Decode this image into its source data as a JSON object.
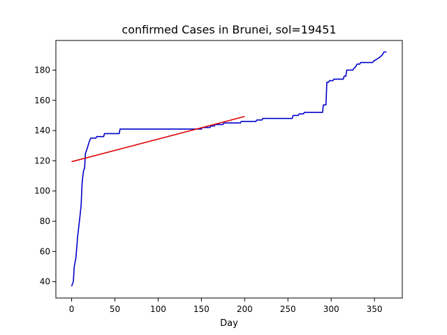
{
  "chart_data": {
    "type": "line",
    "title": "confirmed Cases in Brunei, sol=19451",
    "xlabel": "Day",
    "ylabel": "",
    "xlim": [
      -18.2,
      382.2
    ],
    "ylim": [
      29.2,
      199.6
    ],
    "xticks": [
      0,
      50,
      100,
      150,
      200,
      250,
      300,
      350
    ],
    "yticks": [
      40,
      60,
      80,
      100,
      120,
      140,
      160,
      180
    ],
    "grid": false,
    "series": [
      {
        "color": "#0000cc",
        "points": [
          [
            0,
            37
          ],
          [
            2,
            40
          ],
          [
            3,
            50
          ],
          [
            5,
            56
          ],
          [
            7,
            70
          ],
          [
            9,
            80
          ],
          [
            10,
            85
          ],
          [
            11,
            91
          ],
          [
            12,
            104
          ],
          [
            13,
            110
          ],
          [
            14,
            114
          ],
          [
            15,
            115
          ],
          [
            16,
            125
          ],
          [
            18,
            128
          ],
          [
            20,
            132
          ],
          [
            22,
            135
          ],
          [
            28,
            135
          ],
          [
            29,
            136
          ],
          [
            37,
            136
          ],
          [
            38,
            138
          ],
          [
            55,
            138
          ],
          [
            56,
            141
          ],
          [
            150,
            141
          ],
          [
            151,
            142
          ],
          [
            160,
            142
          ],
          [
            161,
            143
          ],
          [
            165,
            143
          ],
          [
            166,
            144
          ],
          [
            175,
            144
          ],
          [
            176,
            145
          ],
          [
            195,
            145
          ],
          [
            196,
            146
          ],
          [
            213,
            146
          ],
          [
            214,
            147
          ],
          [
            220,
            147
          ],
          [
            221,
            148
          ],
          [
            255,
            148
          ],
          [
            256,
            150
          ],
          [
            262,
            150
          ],
          [
            263,
            151
          ],
          [
            268,
            151
          ],
          [
            269,
            152
          ],
          [
            290,
            152
          ],
          [
            291,
            157
          ],
          [
            294,
            157
          ],
          [
            295,
            172
          ],
          [
            297,
            172
          ],
          [
            298,
            173
          ],
          [
            302,
            173
          ],
          [
            303,
            174
          ],
          [
            314,
            174
          ],
          [
            315,
            176
          ],
          [
            317,
            176
          ],
          [
            318,
            180
          ],
          [
            325,
            180
          ],
          [
            326,
            181
          ],
          [
            328,
            182
          ],
          [
            330,
            184
          ],
          [
            333,
            184
          ],
          [
            334,
            185
          ],
          [
            348,
            185
          ],
          [
            349,
            186
          ],
          [
            352,
            187
          ],
          [
            355,
            188
          ],
          [
            357,
            189
          ],
          [
            359,
            190
          ],
          [
            361,
            192
          ],
          [
            364,
            192
          ]
        ]
      },
      {
        "color": "#dd0000",
        "points": [
          [
            0,
            119.4
          ],
          [
            200,
            149.3
          ]
        ]
      }
    ]
  }
}
